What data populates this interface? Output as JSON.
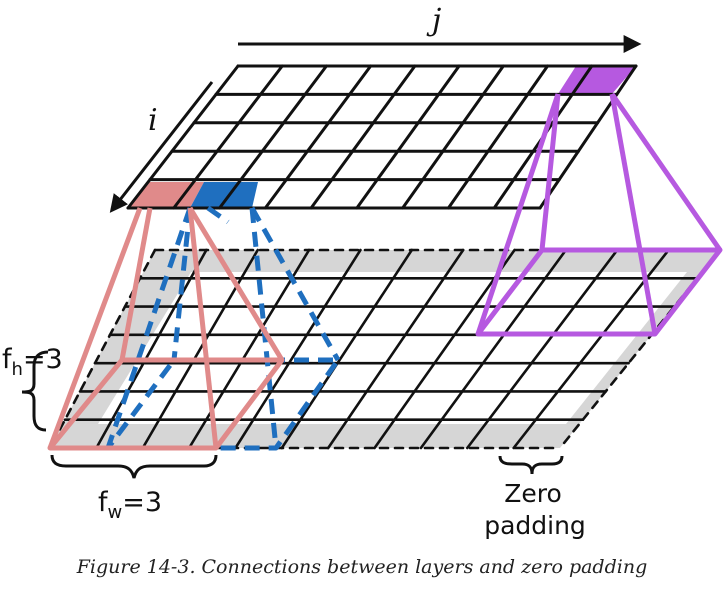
{
  "diagram": {
    "axis_j_label": "j",
    "axis_i_label": "i",
    "fh_label": "f",
    "fh_sub": "h",
    "fh_value": "=3",
    "fw_label": "f",
    "fw_sub": "w",
    "fw_value": "=3",
    "zero_padding_line1": "Zero",
    "zero_padding_line2": "padding"
  },
  "caption": "Figure 14-3. Connections between layers and zero padding",
  "colors": {
    "red": "#e08a8a",
    "blue": "#1f6fbf",
    "purple": "#b659e0",
    "padding": "#d6d6d6"
  }
}
